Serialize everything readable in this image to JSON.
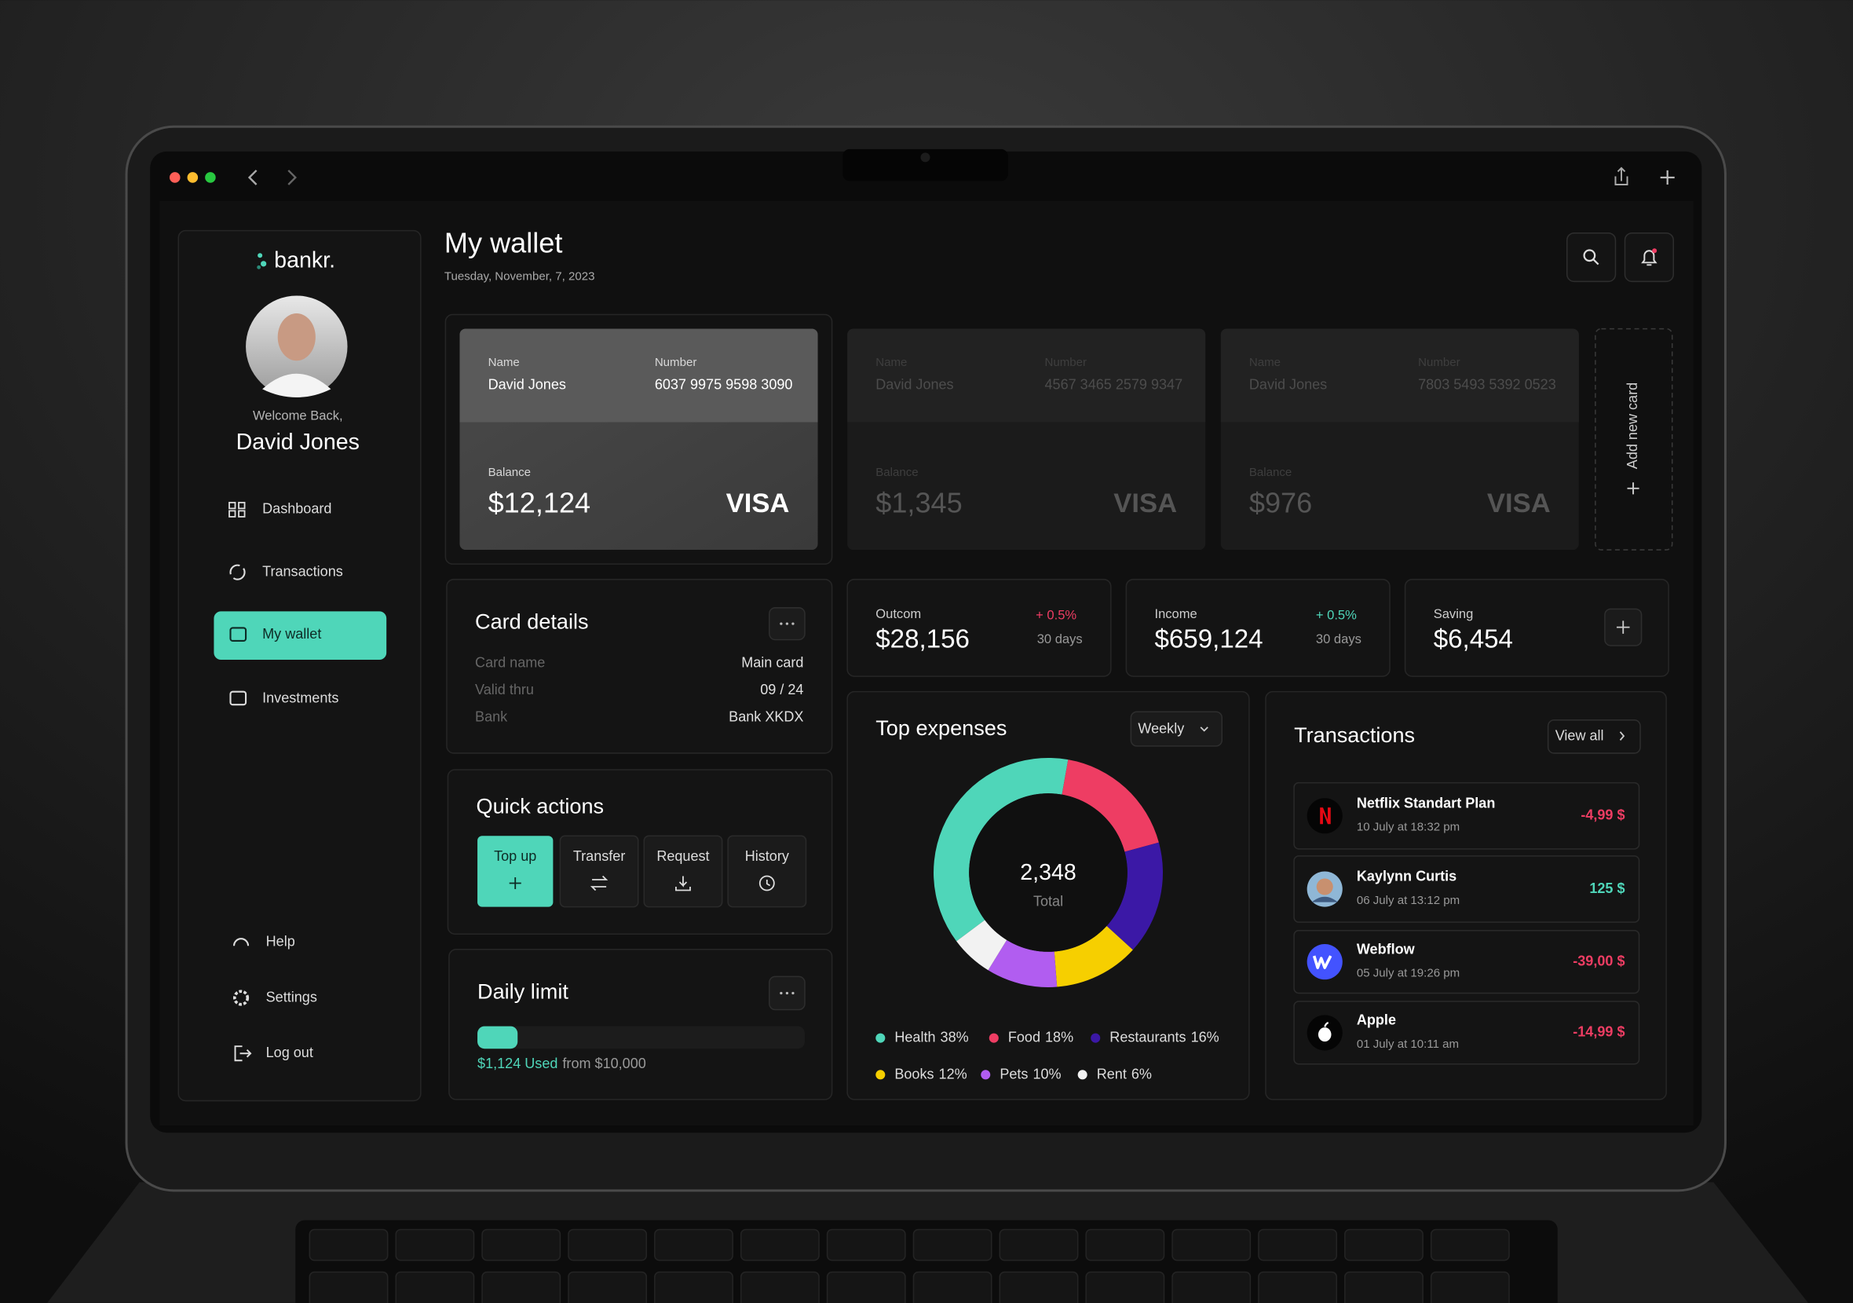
{
  "sidebar": {
    "logo": "bankr.",
    "welcome": "Welcome Back,",
    "user": "David Jones",
    "nav": [
      "Dashboard",
      "Transactions",
      "My wallet",
      "Investments"
    ],
    "footer_nav": [
      "Help",
      "Settings",
      "Log out"
    ]
  },
  "header": {
    "title": "My wallet",
    "date": "Tuesday, November,  7, 2023"
  },
  "cards": [
    {
      "name_label": "Name",
      "name": "David Jones",
      "number_label": "Number",
      "number": "6037 9975 9598 3090",
      "balance_label": "Balance",
      "balance": "$12,124",
      "brand": "VISA"
    },
    {
      "name_label": "Name",
      "name": "David Jones",
      "number_label": "Number",
      "number": "4567 3465 2579 9347",
      "balance_label": "Balance",
      "balance": "$1,345",
      "brand": "VISA"
    },
    {
      "name_label": "Name",
      "name": "David Jones",
      "number_label": "Number",
      "number": "7803 5493 5392 0523",
      "balance_label": "Balance",
      "balance": "$976",
      "brand": "VISA"
    }
  ],
  "add_card": "Add new card",
  "card_details": {
    "title": "Card details",
    "rows": [
      [
        "Card name",
        "Main card"
      ],
      [
        "Valid thru",
        "09 / 24"
      ],
      [
        "Bank",
        "Bank XKDX"
      ]
    ]
  },
  "quick_actions": {
    "title": "Quick actions",
    "actions": [
      "Top up",
      "Transfer",
      "Request",
      "History"
    ]
  },
  "daily_limit": {
    "title": "Daily limit",
    "used": "$1,124 Used",
    "limit": "from $10,000"
  },
  "stats": [
    {
      "label": "Outcom",
      "value": "$28,156",
      "change": "+ 0.5%",
      "period": "30 days"
    },
    {
      "label": "Income",
      "value": "$659,124",
      "change": "+ 0.5%",
      "period": "30 days"
    },
    {
      "label": "Saving",
      "value": "$6,454"
    }
  ],
  "expenses": {
    "title": "Top expenses",
    "filter": "Weekly",
    "total": "2,348",
    "total_label": "Total",
    "categories": [
      "Health",
      "Food",
      "Restaurants",
      "Books",
      "Pets",
      "Rent"
    ],
    "values": [
      38,
      18,
      16,
      12,
      10,
      6
    ],
    "value_labels": [
      "38%",
      "18%",
      "16%",
      "12%",
      "10%",
      "6%"
    ],
    "colors": [
      "#4fd6b9",
      "#ee3d63",
      "#3b18a6",
      "#f6cf00",
      "#b15df0",
      "#f2f2f2"
    ]
  },
  "transactions": {
    "title": "Transactions",
    "view_all": "View all",
    "items": [
      {
        "name": "Netflix Standart Plan",
        "date": "10 July at 18:32 pm",
        "amount": "-4,99 $"
      },
      {
        "name": "Kaylynn Curtis",
        "date": "06 July at 13:12 pm",
        "amount": "125 $"
      },
      {
        "name": "Webflow",
        "date": "05 July at 19:26 pm",
        "amount": "-39,00 $"
      },
      {
        "name": "Apple",
        "date": "01 July at 10:11 am",
        "amount": "-14,99 $"
      }
    ]
  }
}
